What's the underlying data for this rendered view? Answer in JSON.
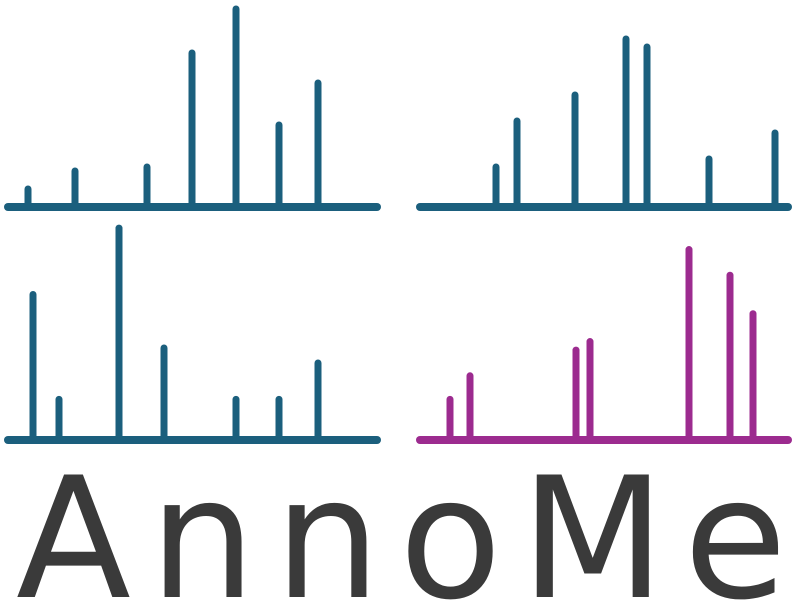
{
  "logo": {
    "colors": {
      "primary": "#1b5f7d",
      "accent": "#9c2b8f",
      "text": "#3a3a3a"
    },
    "wordmark": {
      "text": "AnnoMe",
      "letters": [
        "A",
        "n",
        "n",
        "o",
        "M",
        "e"
      ]
    },
    "panels": [
      {
        "name": "panel-top-left",
        "color": "primary",
        "peaks": [
          0.09,
          0.18,
          0.2,
          0.77,
          0.99,
          0.41,
          0.62
        ]
      },
      {
        "name": "panel-top-right",
        "color": "primary",
        "peaks": [
          0.2,
          0.43,
          0.56,
          0.84,
          0.8,
          0.24,
          0.37
        ]
      },
      {
        "name": "panel-bottom-left",
        "color": "primary",
        "peaks": [
          0.68,
          0.19,
          0.99,
          0.43,
          0.19,
          0.19,
          0.36
        ]
      },
      {
        "name": "panel-bottom-right",
        "color": "accent",
        "peaks": [
          0.19,
          0.3,
          0.42,
          0.46,
          0.89,
          0.77,
          0.59
        ]
      }
    ]
  }
}
